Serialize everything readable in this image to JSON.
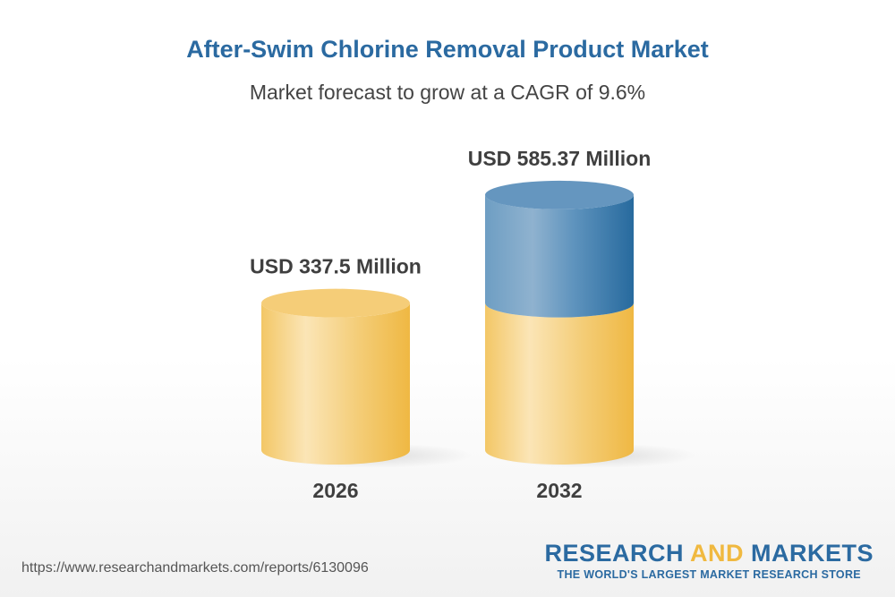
{
  "chart_data": {
    "type": "bar",
    "style": "3d-cylinder",
    "title": "After-Swim Chlorine Removal Product Market",
    "subtitle": "Market forecast to grow at a CAGR of 9.6%",
    "categories": [
      "2026",
      "2032"
    ],
    "values": [
      337.5,
      585.37
    ],
    "data_labels": [
      "USD 337.5 Million",
      "USD 585.37 Million"
    ],
    "unit": "USD Million",
    "colors": {
      "base": "#f2bd4a",
      "growth": "#2b6aa1",
      "title": "#2b6aa1"
    }
  },
  "footer": {
    "url": "https://www.researchandmarkets.com/reports/6130096",
    "logo_part1": "RESEARCH ",
    "logo_part2": "AND",
    "logo_part3": " MARKETS",
    "logo_tagline": "THE WORLD'S LARGEST MARKET RESEARCH STORE"
  }
}
